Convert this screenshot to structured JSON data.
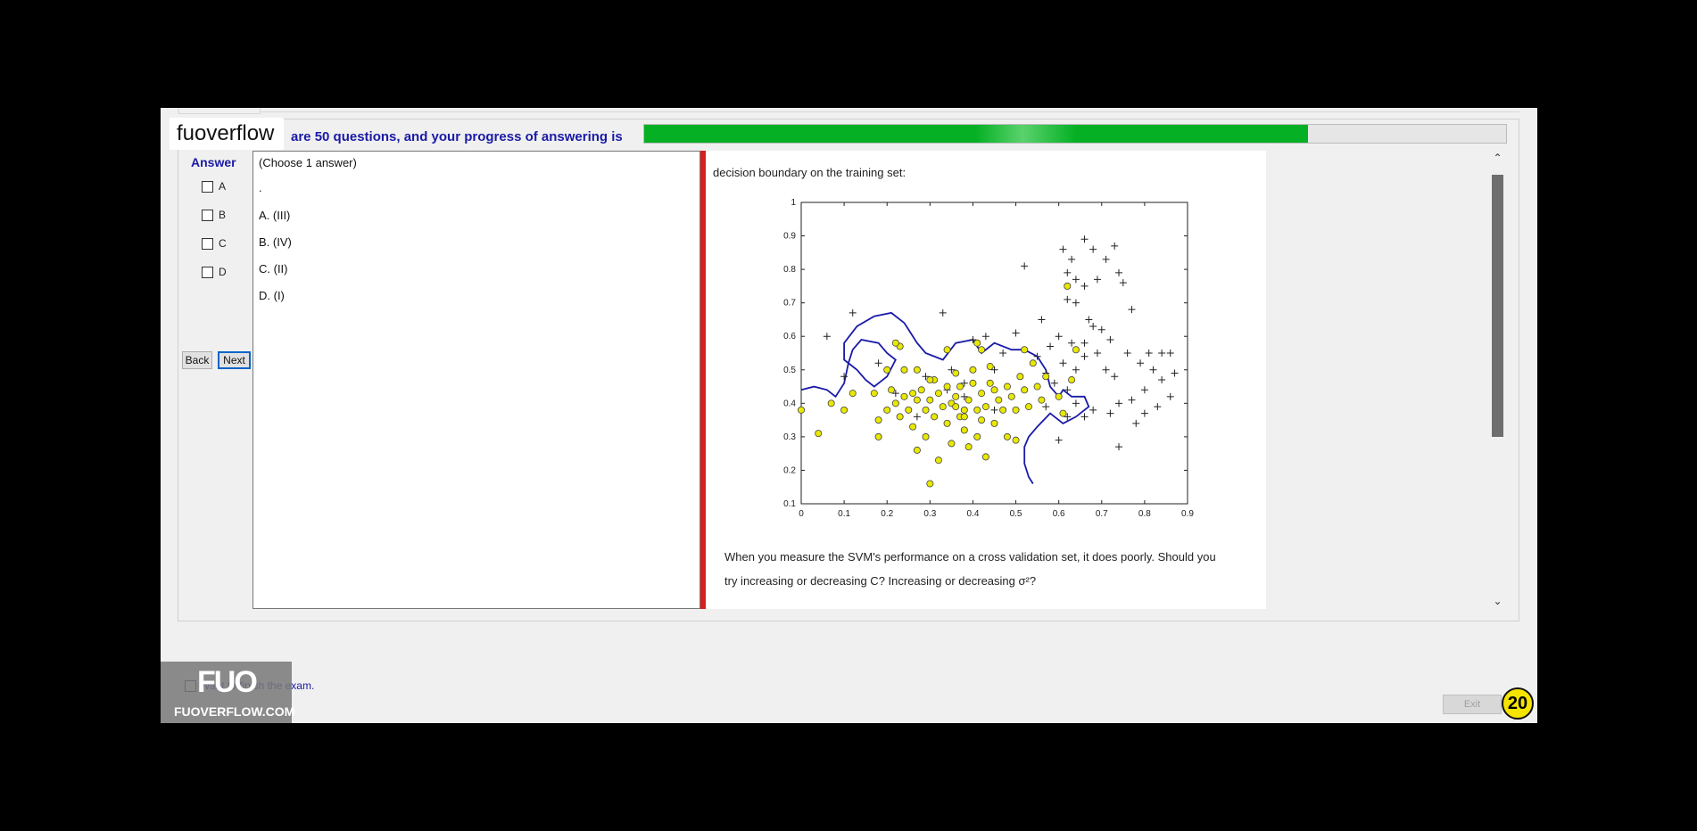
{
  "logo": "fuoverflow",
  "progress": {
    "text": "are 50 questions, and your progress of answering is",
    "value": 0.77
  },
  "answer": {
    "title": "Answer",
    "options": [
      "A",
      "B",
      "C",
      "D"
    ]
  },
  "nav": {
    "back": "Back",
    "next": "Next"
  },
  "question": {
    "instruction": "(Choose 1 answer)",
    "dot": ".",
    "choices": [
      "A.  (III)",
      "B.  (IV)",
      "C.  (II)",
      "D.  (I)"
    ]
  },
  "image_panel": {
    "header": "decision boundary on the training set:",
    "footer_line1": "When you measure the SVM's performance on a cross validation set, it does poorly. Should you",
    "footer_line2": "try increasing or decreasing C? Increasing or decreasing σ²?"
  },
  "chart_data": {
    "type": "scatter",
    "xlim": [
      0,
      0.9
    ],
    "ylim": [
      0.1,
      1
    ],
    "xticks": [
      "0",
      "0.1",
      "0.2",
      "0.3",
      "0.4",
      "0.5",
      "0.6",
      "0.7",
      "0.8",
      "0.9"
    ],
    "yticks": [
      "0.1",
      "0.2",
      "0.3",
      "0.4",
      "0.5",
      "0.6",
      "0.7",
      "0.8",
      "0.9",
      "1"
    ],
    "series": [
      {
        "marker": "plus",
        "color": "#000000",
        "points": [
          [
            0.12,
            0.67
          ],
          [
            0.33,
            0.67
          ],
          [
            0.06,
            0.6
          ],
          [
            0.1,
            0.48
          ],
          [
            0.52,
            0.81
          ],
          [
            0.56,
            0.65
          ],
          [
            0.63,
            0.83
          ],
          [
            0.66,
            0.89
          ],
          [
            0.68,
            0.86
          ],
          [
            0.61,
            0.86
          ],
          [
            0.62,
            0.79
          ],
          [
            0.64,
            0.77
          ],
          [
            0.66,
            0.75
          ],
          [
            0.69,
            0.77
          ],
          [
            0.71,
            0.83
          ],
          [
            0.73,
            0.87
          ],
          [
            0.74,
            0.79
          ],
          [
            0.75,
            0.76
          ],
          [
            0.77,
            0.68
          ],
          [
            0.62,
            0.71
          ],
          [
            0.64,
            0.7
          ],
          [
            0.67,
            0.65
          ],
          [
            0.68,
            0.63
          ],
          [
            0.7,
            0.62
          ],
          [
            0.72,
            0.59
          ],
          [
            0.66,
            0.58
          ],
          [
            0.63,
            0.58
          ],
          [
            0.6,
            0.6
          ],
          [
            0.58,
            0.57
          ],
          [
            0.61,
            0.52
          ],
          [
            0.64,
            0.5
          ],
          [
            0.66,
            0.54
          ],
          [
            0.69,
            0.55
          ],
          [
            0.71,
            0.5
          ],
          [
            0.73,
            0.48
          ],
          [
            0.76,
            0.55
          ],
          [
            0.79,
            0.52
          ],
          [
            0.82,
            0.5
          ],
          [
            0.84,
            0.47
          ],
          [
            0.86,
            0.55
          ],
          [
            0.87,
            0.49
          ],
          [
            0.8,
            0.44
          ],
          [
            0.77,
            0.41
          ],
          [
            0.74,
            0.4
          ],
          [
            0.72,
            0.37
          ],
          [
            0.68,
            0.38
          ],
          [
            0.66,
            0.36
          ],
          [
            0.64,
            0.4
          ],
          [
            0.62,
            0.44
          ],
          [
            0.59,
            0.46
          ],
          [
            0.57,
            0.49
          ],
          [
            0.55,
            0.54
          ],
          [
            0.5,
            0.61
          ],
          [
            0.47,
            0.55
          ],
          [
            0.45,
            0.5
          ],
          [
            0.43,
            0.6
          ],
          [
            0.4,
            0.59
          ],
          [
            0.38,
            0.46
          ],
          [
            0.34,
            0.44
          ],
          [
            0.29,
            0.48
          ],
          [
            0.35,
            0.5
          ],
          [
            0.45,
            0.38
          ],
          [
            0.38,
            0.42
          ],
          [
            0.27,
            0.36
          ],
          [
            0.22,
            0.43
          ],
          [
            0.18,
            0.52
          ],
          [
            0.78,
            0.34
          ],
          [
            0.8,
            0.37
          ],
          [
            0.83,
            0.39
          ],
          [
            0.86,
            0.42
          ],
          [
            0.84,
            0.55
          ],
          [
            0.81,
            0.55
          ],
          [
            0.74,
            0.27
          ],
          [
            0.6,
            0.29
          ],
          [
            0.57,
            0.39
          ],
          [
            0.62,
            0.36
          ]
        ]
      },
      {
        "marker": "circle",
        "color": "#e8e800",
        "points": [
          [
            0.0,
            0.38
          ],
          [
            0.04,
            0.31
          ],
          [
            0.07,
            0.4
          ],
          [
            0.1,
            0.38
          ],
          [
            0.12,
            0.43
          ],
          [
            0.17,
            0.43
          ],
          [
            0.18,
            0.35
          ],
          [
            0.18,
            0.3
          ],
          [
            0.2,
            0.38
          ],
          [
            0.21,
            0.44
          ],
          [
            0.22,
            0.4
          ],
          [
            0.23,
            0.36
          ],
          [
            0.24,
            0.42
          ],
          [
            0.25,
            0.38
          ],
          [
            0.26,
            0.33
          ],
          [
            0.27,
            0.26
          ],
          [
            0.27,
            0.41
          ],
          [
            0.28,
            0.44
          ],
          [
            0.29,
            0.38
          ],
          [
            0.29,
            0.3
          ],
          [
            0.3,
            0.41
          ],
          [
            0.31,
            0.36
          ],
          [
            0.31,
            0.47
          ],
          [
            0.32,
            0.43
          ],
          [
            0.32,
            0.23
          ],
          [
            0.33,
            0.39
          ],
          [
            0.34,
            0.34
          ],
          [
            0.34,
            0.45
          ],
          [
            0.35,
            0.4
          ],
          [
            0.35,
            0.28
          ],
          [
            0.36,
            0.49
          ],
          [
            0.36,
            0.42
          ],
          [
            0.37,
            0.36
          ],
          [
            0.37,
            0.45
          ],
          [
            0.38,
            0.32
          ],
          [
            0.38,
            0.38
          ],
          [
            0.39,
            0.41
          ],
          [
            0.39,
            0.27
          ],
          [
            0.4,
            0.46
          ],
          [
            0.4,
            0.5
          ],
          [
            0.41,
            0.38
          ],
          [
            0.41,
            0.3
          ],
          [
            0.42,
            0.35
          ],
          [
            0.42,
            0.43
          ],
          [
            0.43,
            0.39
          ],
          [
            0.43,
            0.24
          ],
          [
            0.44,
            0.46
          ],
          [
            0.44,
            0.51
          ],
          [
            0.45,
            0.34
          ],
          [
            0.45,
            0.44
          ],
          [
            0.46,
            0.41
          ],
          [
            0.47,
            0.38
          ],
          [
            0.48,
            0.3
          ],
          [
            0.48,
            0.45
          ],
          [
            0.49,
            0.42
          ],
          [
            0.5,
            0.38
          ],
          [
            0.5,
            0.29
          ],
          [
            0.51,
            0.48
          ],
          [
            0.52,
            0.44
          ],
          [
            0.52,
            0.56
          ],
          [
            0.53,
            0.39
          ],
          [
            0.54,
            0.52
          ],
          [
            0.55,
            0.45
          ],
          [
            0.56,
            0.41
          ],
          [
            0.57,
            0.48
          ],
          [
            0.6,
            0.42
          ],
          [
            0.61,
            0.37
          ],
          [
            0.63,
            0.47
          ],
          [
            0.64,
            0.56
          ],
          [
            0.62,
            0.75
          ],
          [
            0.3,
            0.16
          ],
          [
            0.23,
            0.57
          ],
          [
            0.22,
            0.58
          ],
          [
            0.34,
            0.56
          ],
          [
            0.42,
            0.56
          ],
          [
            0.41,
            0.58
          ],
          [
            0.2,
            0.5
          ],
          [
            0.24,
            0.5
          ],
          [
            0.27,
            0.5
          ],
          [
            0.3,
            0.47
          ],
          [
            0.26,
            0.43
          ],
          [
            0.36,
            0.39
          ],
          [
            0.38,
            0.36
          ]
        ]
      }
    ],
    "boundary": [
      [
        0.0,
        0.44
      ],
      [
        0.03,
        0.45
      ],
      [
        0.06,
        0.44
      ],
      [
        0.08,
        0.42
      ],
      [
        0.1,
        0.46
      ],
      [
        0.11,
        0.52
      ],
      [
        0.12,
        0.56
      ],
      [
        0.14,
        0.59
      ],
      [
        0.18,
        0.58
      ],
      [
        0.2,
        0.55
      ],
      [
        0.22,
        0.53
      ],
      [
        0.2,
        0.48
      ],
      [
        0.17,
        0.45
      ],
      [
        0.15,
        0.47
      ],
      [
        0.13,
        0.5
      ],
      [
        0.1,
        0.53
      ],
      [
        0.1,
        0.58
      ],
      [
        0.13,
        0.63
      ],
      [
        0.17,
        0.66
      ],
      [
        0.21,
        0.67
      ],
      [
        0.24,
        0.64
      ],
      [
        0.27,
        0.58
      ],
      [
        0.29,
        0.55
      ],
      [
        0.33,
        0.53
      ],
      [
        0.36,
        0.58
      ],
      [
        0.4,
        0.59
      ],
      [
        0.42,
        0.55
      ],
      [
        0.45,
        0.58
      ],
      [
        0.49,
        0.56
      ],
      [
        0.52,
        0.56
      ],
      [
        0.55,
        0.54
      ],
      [
        0.57,
        0.5
      ],
      [
        0.58,
        0.45
      ],
      [
        0.6,
        0.42
      ],
      [
        0.61,
        0.44
      ],
      [
        0.63,
        0.42
      ],
      [
        0.66,
        0.42
      ],
      [
        0.67,
        0.39
      ],
      [
        0.64,
        0.36
      ],
      [
        0.61,
        0.34
      ],
      [
        0.58,
        0.37
      ],
      [
        0.55,
        0.33
      ],
      [
        0.53,
        0.3
      ],
      [
        0.52,
        0.27
      ],
      [
        0.52,
        0.22
      ],
      [
        0.53,
        0.18
      ],
      [
        0.54,
        0.16
      ]
    ]
  }
}
